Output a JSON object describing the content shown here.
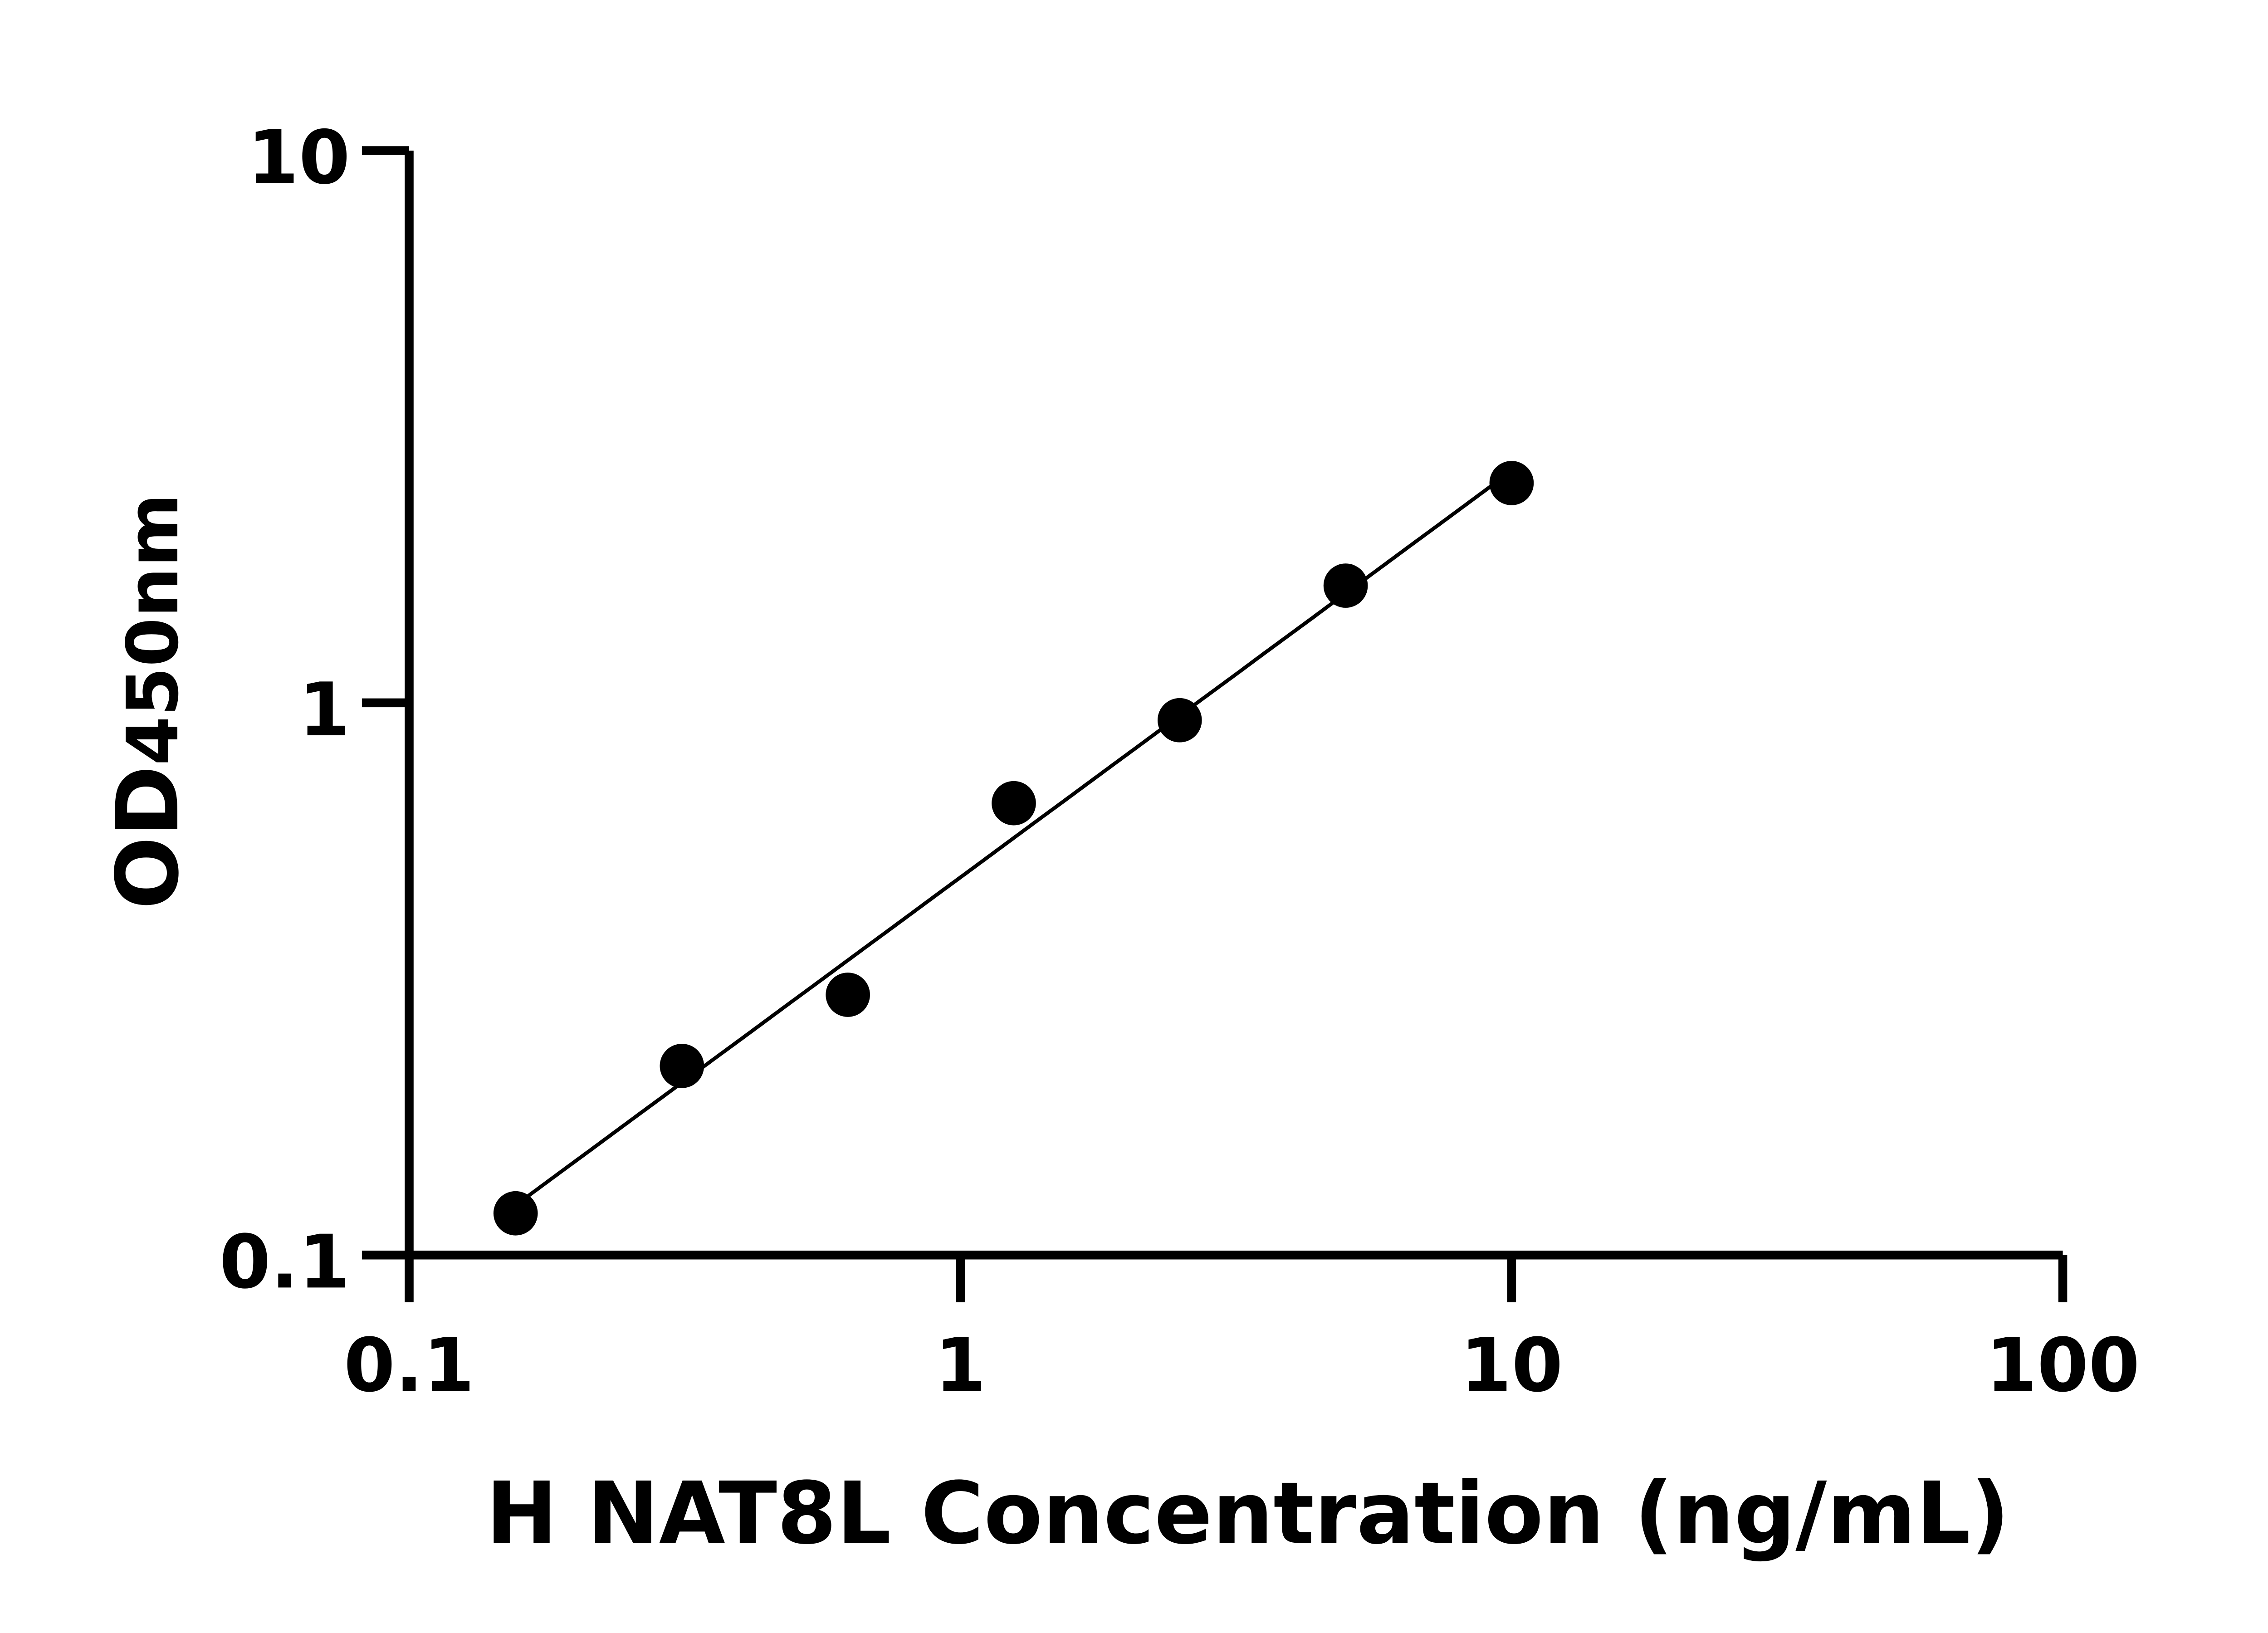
{
  "chart_data": {
    "type": "scatter",
    "title": "",
    "xlabel": "H NAT8L Concentration (ng/mL)",
    "ylabel_main": "OD",
    "ylabel_sub": "450nm",
    "x_scale": "log",
    "y_scale": "log",
    "xlim": [
      0.1,
      100
    ],
    "ylim": [
      0.1,
      10
    ],
    "x_ticks": [
      "0.1",
      "1",
      "10",
      "100"
    ],
    "y_ticks": [
      "0.1",
      "1",
      "10"
    ],
    "grid": false,
    "legend": "none",
    "fit_line": true,
    "marker_color": "#000000",
    "points": [
      {
        "x": 0.156,
        "y": 0.119
      },
      {
        "x": 0.3125,
        "y": 0.22
      },
      {
        "x": 0.625,
        "y": 0.296
      },
      {
        "x": 1.25,
        "y": 0.658
      },
      {
        "x": 2.5,
        "y": 0.93
      },
      {
        "x": 5,
        "y": 1.63
      },
      {
        "x": 10,
        "y": 2.5
      }
    ]
  }
}
